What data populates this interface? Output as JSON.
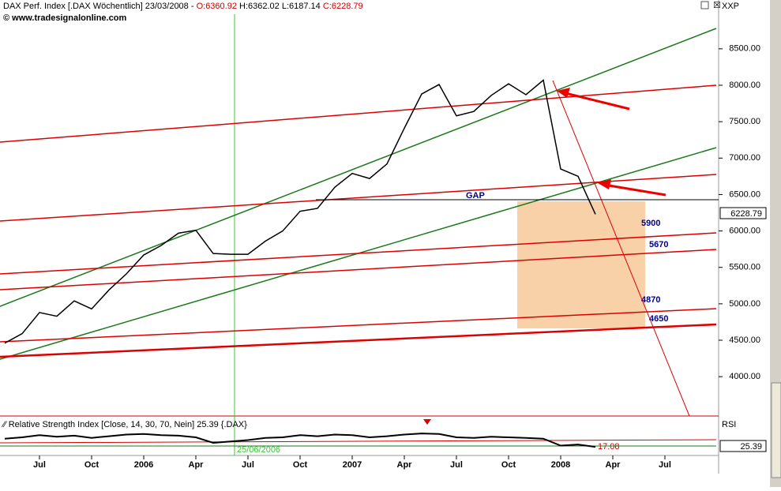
{
  "chart_data": {
    "type": "line",
    "header": {
      "title": "DAX Perf. Index [.DAX  Wöchentlich] 23/03/2008 -",
      "open": "O:6360.92",
      "high_low": "H:6362.02 L:6187.14",
      "close": "C:6228.79",
      "source": "© www.tradesignalonline.com",
      "axis_name": "XXP"
    },
    "categories": [
      null,
      null,
      "Jul",
      null,
      null,
      "Oct",
      null,
      null,
      "2006",
      null,
      null,
      "Apr",
      null,
      null,
      "Jul",
      null,
      null,
      "Oct",
      null,
      null,
      "2007",
      null,
      null,
      "Apr",
      null,
      null,
      "Jul",
      null,
      null,
      "Oct",
      null,
      null,
      "2008",
      null,
      null,
      "Apr",
      null,
      null,
      "Jul"
    ],
    "series": [
      {
        "name": "DAX",
        "color": "#000000",
        "values": [
          4460,
          4590,
          4880,
          4830,
          5040,
          4930,
          5190,
          5410,
          5670,
          5800,
          5970,
          6010,
          5690,
          5680,
          5680,
          5860,
          6000,
          6270,
          6310,
          6600,
          6790,
          6720,
          6920,
          7410,
          7880,
          8010,
          7580,
          7640,
          7860,
          8020,
          7870,
          8070,
          6850,
          6750,
          6229,
          null,
          null,
          null,
          null
        ]
      }
    ],
    "ylim": [
      3460,
      9170
    ],
    "yticks": [
      {
        "value": 4000,
        "label": "4000.00"
      },
      {
        "value": 4500,
        "label": "4500.00"
      },
      {
        "value": 5000,
        "label": "5000.00"
      },
      {
        "value": 5500,
        "label": "5500.00"
      },
      {
        "value": 6000,
        "label": "6000.00"
      },
      {
        "value": 6500,
        "label": "6500.00"
      },
      {
        "value": 7000,
        "label": "7000.00"
      },
      {
        "value": 7500,
        "label": "7500.00"
      },
      {
        "value": 8000,
        "label": "8000.00"
      },
      {
        "value": 8500,
        "label": "8500.00"
      }
    ],
    "last_price": "6228.79",
    "annotations": [
      "GAP",
      "5900",
      "5670",
      "4870",
      "4650"
    ],
    "rsi": {
      "title": "Relative Strength Index [Close, 14, 30, 70, Nein] 25.39 {.DAX}",
      "name": "RSI",
      "last": "25.39",
      "date_label": "25/06/2006",
      "low_label": "17.08",
      "ylim": [
        0,
        100
      ],
      "color": "#000000",
      "values": [
        55,
        60,
        68,
        62,
        66,
        58,
        64,
        70,
        72,
        68,
        66,
        60,
        40,
        45,
        50,
        58,
        60,
        68,
        64,
        70,
        68,
        60,
        64,
        70,
        74,
        72,
        60,
        58,
        62,
        60,
        58,
        55,
        30,
        34,
        25.39,
        null,
        null,
        null,
        null
      ]
    }
  }
}
